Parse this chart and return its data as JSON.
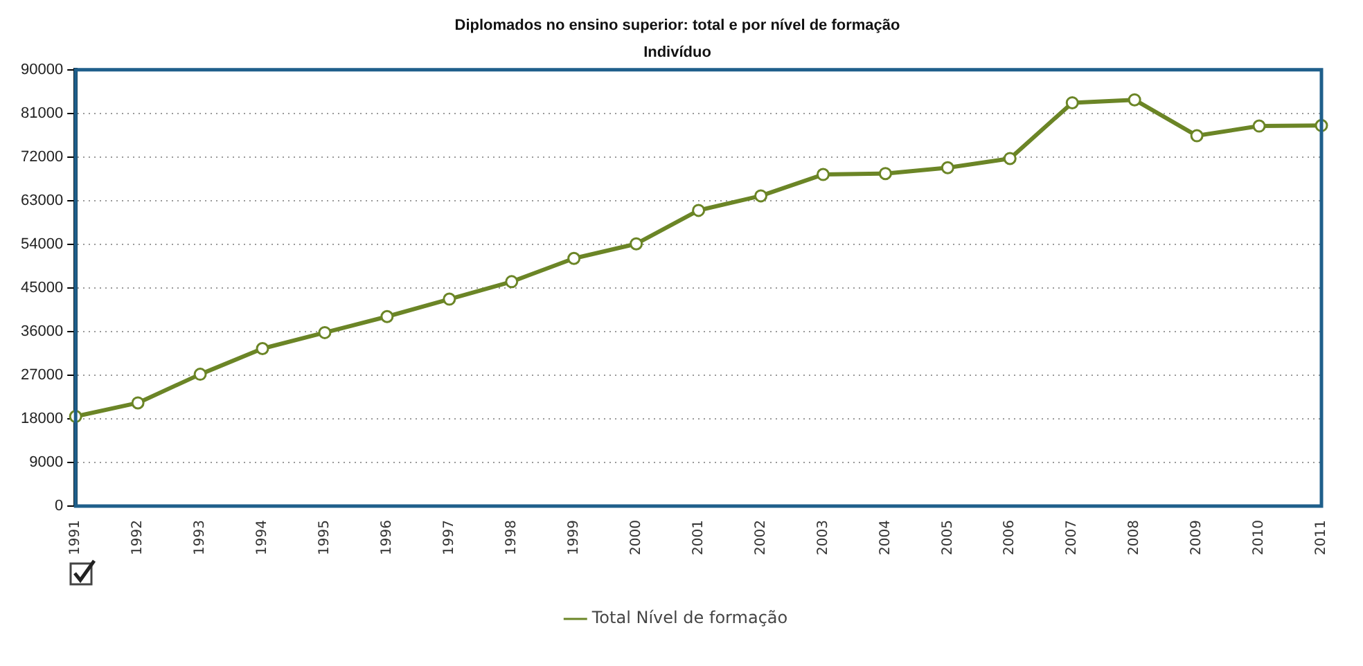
{
  "chart_data": {
    "type": "line",
    "title": "Diplomados no ensino superior: total e por nível de formação",
    "subtitle": "Indivíduo",
    "categories": [
      "1991",
      "1992",
      "1993",
      "1994",
      "1995",
      "1996",
      "1997",
      "1998",
      "1999",
      "2000",
      "2001",
      "2002",
      "2003",
      "2004",
      "2005",
      "2006",
      "2007",
      "2008",
      "2009",
      "2010",
      "2011"
    ],
    "series": [
      {
        "name": "Total Nível de formação",
        "color": "#6b8526",
        "values": [
          18500,
          21300,
          27200,
          32500,
          35800,
          39100,
          42700,
          46300,
          51100,
          54100,
          61000,
          64000,
          68400,
          68600,
          69800,
          71700,
          83200,
          83800,
          76400,
          78400,
          78500
        ]
      }
    ],
    "ylim": [
      0,
      90000
    ],
    "yticks": [
      0,
      9000,
      18000,
      27000,
      36000,
      45000,
      54000,
      63000,
      72000,
      81000,
      90000
    ],
    "grid": "y",
    "legend": "bottom",
    "marker": "circle",
    "line_style": "solid"
  }
}
